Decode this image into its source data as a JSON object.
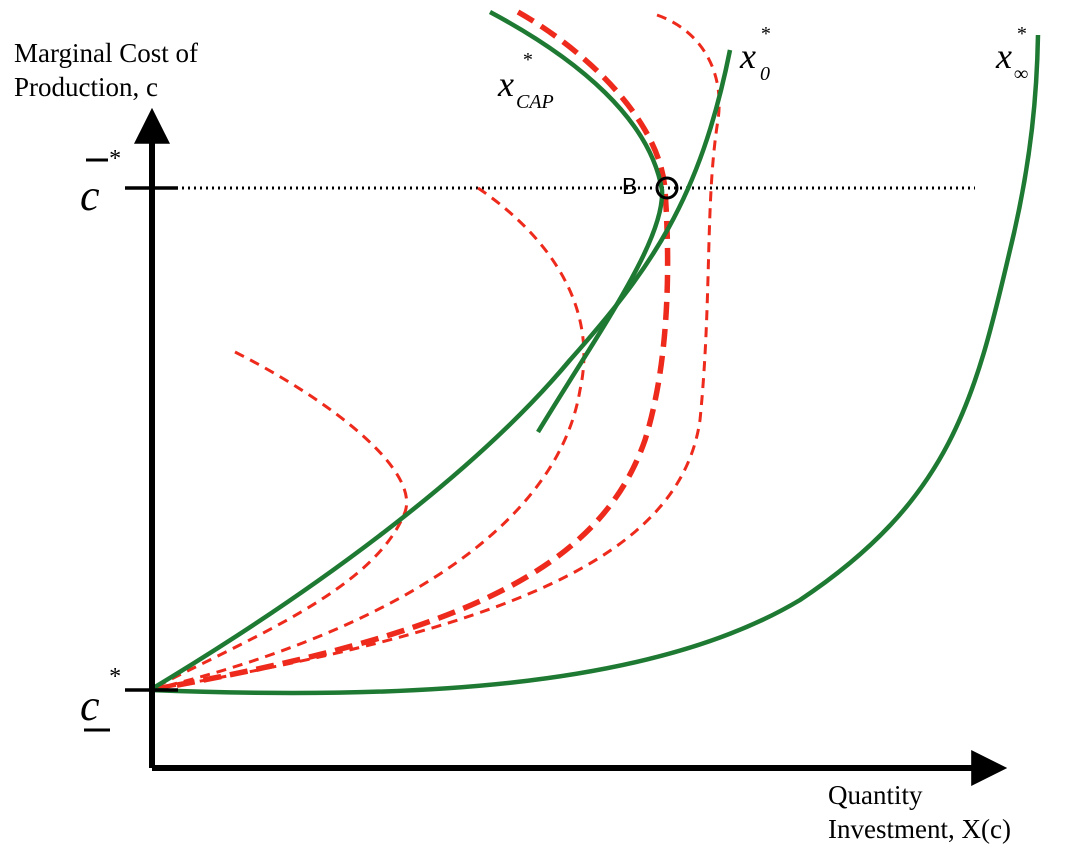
{
  "axes": {
    "y_title_line1": "Marginal Cost of",
    "y_title_line2": "Production, c",
    "x_title_line1": "Quantity",
    "x_title_line2": "Investment, X(c)"
  },
  "ticks": {
    "upper_symbol": "c",
    "upper_superscript": "*",
    "lower_symbol": "c",
    "lower_superscript": "*"
  },
  "curve_labels": {
    "cap_base": "x",
    "cap_superscript": "*",
    "cap_subscript": "CAP",
    "zero_base": "x",
    "zero_superscript": "*",
    "zero_subscript": "0",
    "inf_base": "x",
    "inf_superscript": "*",
    "inf_subscript": "∞"
  },
  "point": {
    "label": "B"
  },
  "colors": {
    "green_curves": "#1e7a32",
    "red_dashed_curves": "#ee2a1c",
    "axes": "#000000"
  }
}
